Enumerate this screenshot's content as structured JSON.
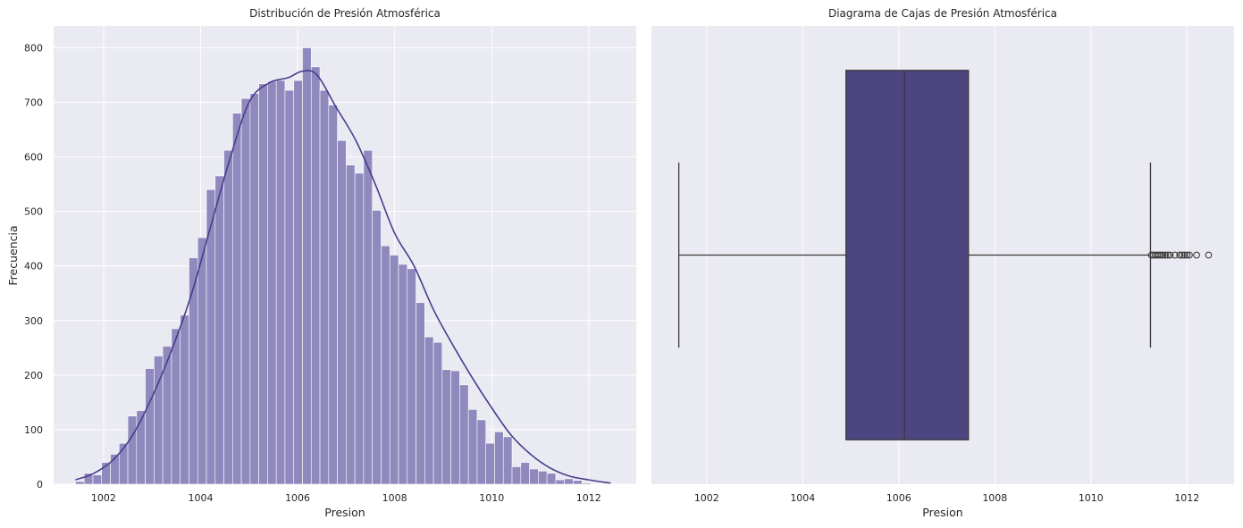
{
  "chart_data": [
    {
      "type": "bar",
      "title": "Distribución de Presión Atmosférica",
      "xlabel": "Presion",
      "ylabel": "Frecuencia",
      "xlim": [
        1000.97,
        1012.98
      ],
      "ylim": [
        0,
        840
      ],
      "xticks": [
        "1002",
        "1004",
        "1006",
        "1008",
        "1010",
        "1012"
      ],
      "yticks": [
        "0",
        "100",
        "200",
        "300",
        "400",
        "500",
        "600",
        "700",
        "800"
      ],
      "grid": true,
      "bar_color": "#8f89bd",
      "line_color": "#483d8b",
      "background": "#eaeaf2",
      "bin_start": 1001.42,
      "bin_width": 0.18,
      "counts": [
        5,
        20,
        17,
        40,
        55,
        75,
        125,
        135,
        212,
        235,
        253,
        285,
        310,
        415,
        452,
        540,
        565,
        612,
        680,
        707,
        716,
        734,
        738,
        740,
        722,
        740,
        800,
        765,
        722,
        695,
        630,
        585,
        570,
        612,
        502,
        437,
        420,
        403,
        395,
        333,
        270,
        260,
        210,
        208,
        182,
        137,
        118,
        75,
        96,
        87,
        32,
        40,
        28,
        24,
        20,
        8,
        10,
        7,
        2
      ],
      "kde": {
        "x": [
          1001.42,
          1001.8,
          1002.2,
          1002.6,
          1003.0,
          1003.4,
          1003.8,
          1004.2,
          1004.6,
          1005.0,
          1005.4,
          1005.8,
          1006.1,
          1006.4,
          1006.8,
          1007.2,
          1007.6,
          1008.0,
          1008.4,
          1008.8,
          1009.2,
          1009.6,
          1010.0,
          1010.4,
          1010.8,
          1011.2,
          1011.6,
          1012.0,
          1012.45
        ],
        "y": [
          8,
          20,
          45,
          90,
          160,
          245,
          345,
          470,
          595,
          700,
          735,
          745,
          757,
          750,
          690,
          630,
          550,
          460,
          400,
          320,
          255,
          195,
          140,
          90,
          55,
          30,
          15,
          8,
          2
        ]
      }
    },
    {
      "type": "box",
      "title": "Diagrama de Cajas de Presión Atmosférica",
      "xlabel": "Presion",
      "xlim": [
        1000.85,
        1012.98
      ],
      "xticks": [
        "1002",
        "1004",
        "1006",
        "1008",
        "1010",
        "1012"
      ],
      "grid": true,
      "box_color": "#4d4580",
      "line_color": "#3a3a3a",
      "background": "#eaeaf2",
      "whisker_low": 1001.42,
      "q1": 1004.9,
      "median": 1006.12,
      "q3": 1007.45,
      "whisker_high": 1011.24,
      "outliers": [
        1011.26,
        1011.3,
        1011.34,
        1011.38,
        1011.42,
        1011.46,
        1011.5,
        1011.55,
        1011.6,
        1011.65,
        1011.75,
        1011.85,
        1011.9,
        1011.95,
        1012.0,
        1012.05,
        1012.2,
        1012.45
      ]
    }
  ]
}
